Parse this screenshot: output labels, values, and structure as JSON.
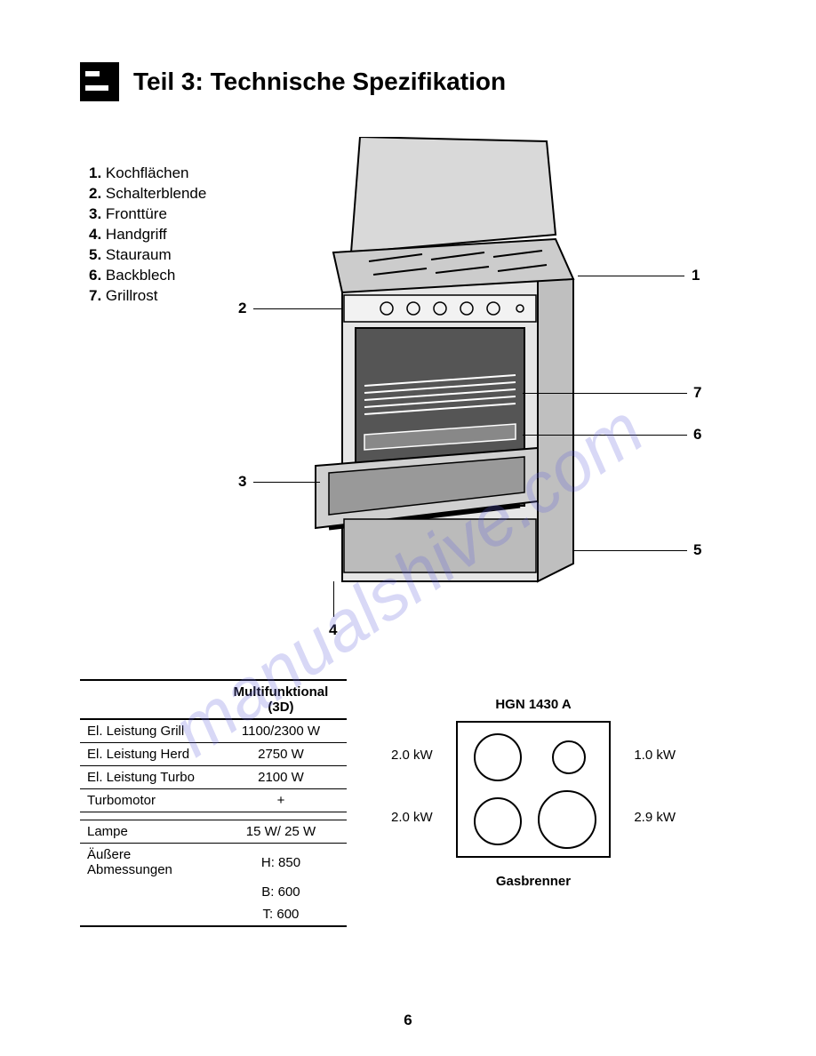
{
  "header": {
    "title": "Teil 3: Technische Spezifikation"
  },
  "parts": [
    {
      "num": "1.",
      "label": "Kochflächen"
    },
    {
      "num": "2.",
      "label": "Schalterblende"
    },
    {
      "num": "3.",
      "label": "Fronttüre"
    },
    {
      "num": "4.",
      "label": "Handgriff"
    },
    {
      "num": "5.",
      "label": "Stauraum"
    },
    {
      "num": "6.",
      "label": "Backblech"
    },
    {
      "num": "7.",
      "label": "Grillrost"
    }
  ],
  "callouts": {
    "c1": "1",
    "c2": "2",
    "c3": "3",
    "c4": "4",
    "c5": "5",
    "c6": "6",
    "c7": "7"
  },
  "spec_table": {
    "header": "Multifunktional (3D)",
    "rows": [
      {
        "label": "El. Leistung Grill",
        "value": "1100/2300 W"
      },
      {
        "label": "El. Leistung Herd",
        "value": "2750 W"
      },
      {
        "label": "El. Leistung Turbo",
        "value": "2100 W"
      },
      {
        "label": "Turbomotor",
        "value": "+"
      },
      {
        "label": "",
        "value": ""
      },
      {
        "label": "Lampe",
        "value": "15 W/ 25 W"
      },
      {
        "label": "Äußere Abmessungen",
        "value": "H: 850"
      },
      {
        "label": "",
        "value": "B: 600"
      },
      {
        "label": "",
        "value": "T: 600"
      }
    ]
  },
  "burner": {
    "title": "HGN 1430 A",
    "labels": {
      "tl": "2.0 kW",
      "tr": "1.0 kW",
      "bl": "2.0 kW",
      "br": "2.9 kW"
    },
    "caption": "Gasbrenner",
    "circles": {
      "tl_d": 50,
      "tr_d": 34,
      "bl_d": 50,
      "br_d": 62
    },
    "box_color": "#000000",
    "background": "#ffffff"
  },
  "watermark": "manualshive.com",
  "page_number": "6"
}
